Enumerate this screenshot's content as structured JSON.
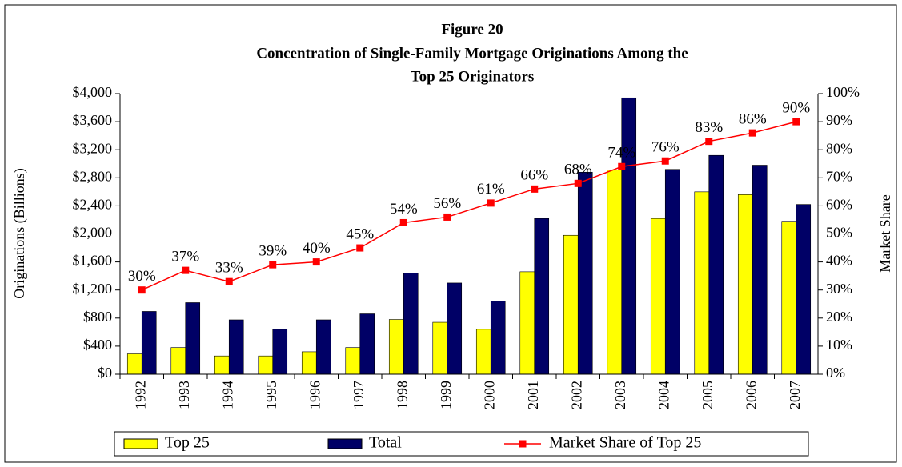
{
  "chart_data": {
    "type": "bar",
    "title": [
      "Figure 20",
      "Concentration of Single-Family Mortgage Originations Among the",
      "Top 25 Originators"
    ],
    "y_label": "Originations (Billions)",
    "y2_label": "Market Share",
    "categories": [
      "1992",
      "1993",
      "1994",
      "1995",
      "1996",
      "1997",
      "1998",
      "1999",
      "2000",
      "2001",
      "2002",
      "2003",
      "2004",
      "2005",
      "2006",
      "2007"
    ],
    "series": [
      {
        "name": "Top 25",
        "type": "bar",
        "color": "#ffff00",
        "values": [
          290,
          380,
          260,
          260,
          320,
          380,
          780,
          740,
          640,
          1460,
          1980,
          2910,
          2220,
          2600,
          2560,
          2180
        ]
      },
      {
        "name": "Total",
        "type": "bar",
        "color": "#000066",
        "values": [
          895,
          1020,
          775,
          640,
          775,
          860,
          1440,
          1300,
          1040,
          2220,
          2880,
          3940,
          2920,
          3120,
          2980,
          2420
        ]
      },
      {
        "name": "Market Share of Top 25",
        "type": "line",
        "axis": "y2",
        "color": "#ff0000",
        "values": [
          30,
          37,
          33,
          39,
          40,
          45,
          54,
          56,
          61,
          66,
          68,
          74,
          76,
          83,
          86,
          90
        ],
        "value_labels": [
          "30%",
          "37%",
          "33%",
          "39%",
          "40%",
          "45%",
          "54%",
          "56%",
          "61%",
          "66%",
          "68%",
          "74%",
          "76%",
          "83%",
          "86%",
          "90%"
        ]
      }
    ],
    "ylim": [
      0,
      4000
    ],
    "yticks": [
      {
        "value": 0,
        "label": "$0"
      },
      {
        "value": 400,
        "label": "$400"
      },
      {
        "value": 800,
        "label": "$800"
      },
      {
        "value": 1200,
        "label": "$1,200"
      },
      {
        "value": 1600,
        "label": "$1,600"
      },
      {
        "value": 2000,
        "label": "$2,000"
      },
      {
        "value": 2400,
        "label": "$2,400"
      },
      {
        "value": 2800,
        "label": "$2,800"
      },
      {
        "value": 3200,
        "label": "$3,200"
      },
      {
        "value": 3600,
        "label": "$3,600"
      },
      {
        "value": 4000,
        "label": "$4,000"
      }
    ],
    "y2lim": [
      0,
      100
    ],
    "y2ticks": [
      {
        "value": 0,
        "label": "0%"
      },
      {
        "value": 10,
        "label": "10%"
      },
      {
        "value": 20,
        "label": "20%"
      },
      {
        "value": 30,
        "label": "30%"
      },
      {
        "value": 40,
        "label": "40%"
      },
      {
        "value": 50,
        "label": "50%"
      },
      {
        "value": 60,
        "label": "60%"
      },
      {
        "value": 70,
        "label": "70%"
      },
      {
        "value": 80,
        "label": "80%"
      },
      {
        "value": 90,
        "label": "90%"
      },
      {
        "value": 100,
        "label": "100%"
      }
    ],
    "grid": false,
    "legend": "bottom"
  }
}
